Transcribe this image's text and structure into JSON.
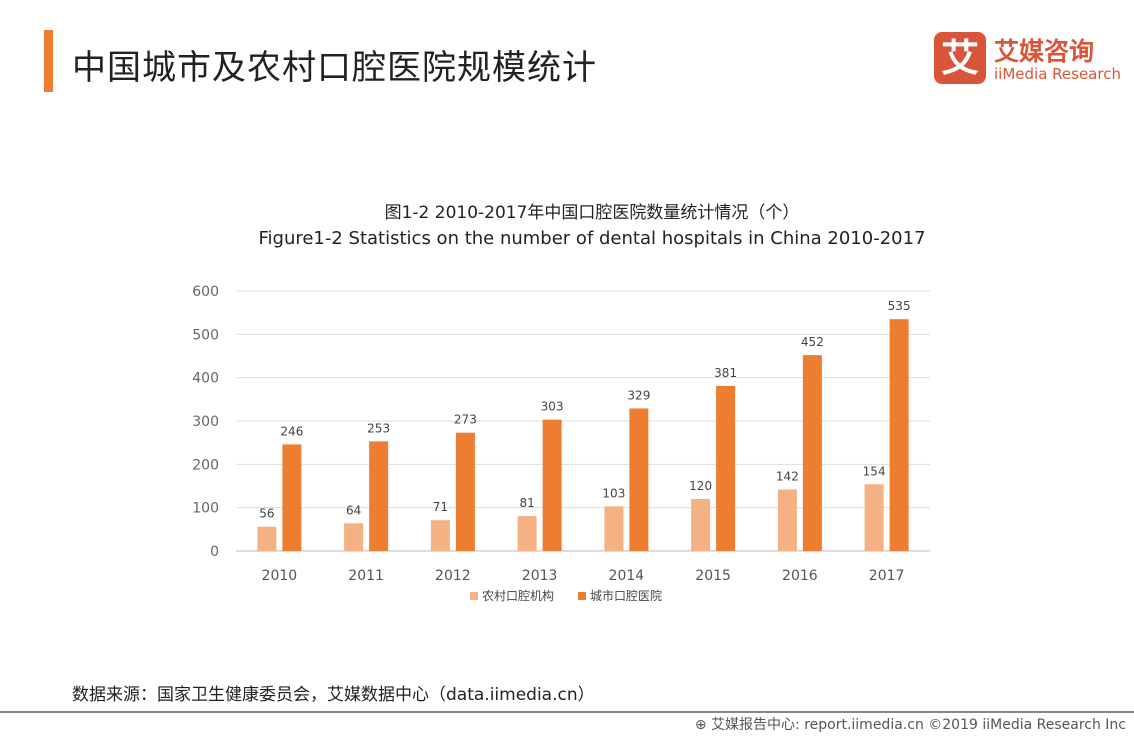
{
  "header": {
    "title": "中国城市及农村口腔医院规模统计"
  },
  "logo": {
    "mark": "艾",
    "cn": "艾媒咨询",
    "en": "iiMedia Research"
  },
  "chart_data": {
    "type": "bar",
    "title": "图1-2  2010-2017年中国口腔医院数量统计情况（个）",
    "subtitle": "Figure1-2 Statistics on the number of dental hospitals in China 2010-2017",
    "categories": [
      "2010",
      "2011",
      "2012",
      "2013",
      "2014",
      "2015",
      "2016",
      "2017"
    ],
    "series": [
      {
        "name": "农村口腔机构",
        "values": [
          56,
          64,
          71,
          81,
          103,
          120,
          142,
          154
        ],
        "color": "#F4B183"
      },
      {
        "name": "城市口腔医院",
        "values": [
          246,
          253,
          273,
          303,
          329,
          381,
          452,
          535
        ],
        "color": "#ED7D31"
      }
    ],
    "ylim": [
      0,
      600
    ],
    "yticks": [
      0,
      100,
      200,
      300,
      400,
      500,
      600
    ],
    "grid": true,
    "legend": "bottom"
  },
  "source": "数据来源：国家卫生健康委员会，艾媒数据中心（data.iimedia.cn）",
  "footer": "艾媒报告中心: report.iimedia.cn  ©2019  iiMedia Research Inc"
}
